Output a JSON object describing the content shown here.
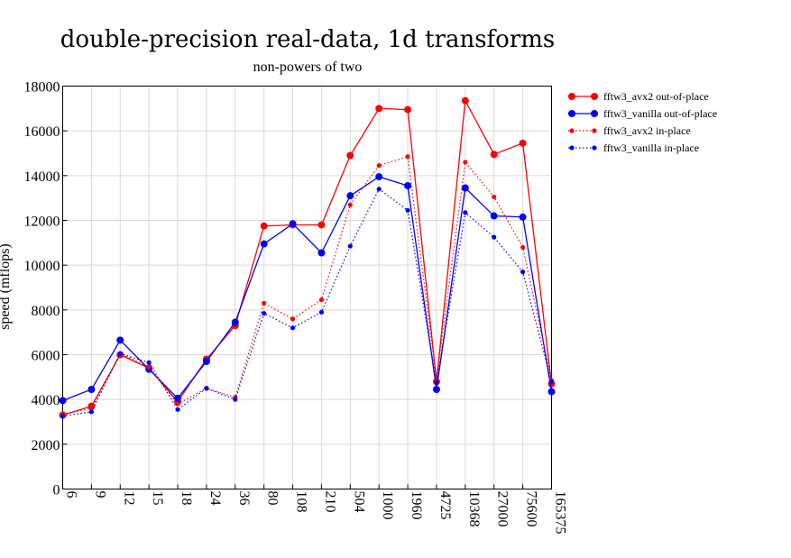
{
  "chart_data": {
    "type": "line",
    "title": "double-precision real-data, 1d transforms",
    "subtitle": "non-powers of two",
    "ylabel": "speed (mflops)",
    "ylim": [
      0,
      18000
    ],
    "yticks": [
      0,
      2000,
      4000,
      6000,
      8000,
      10000,
      12000,
      14000,
      16000,
      18000
    ],
    "grid": true,
    "legend_position": "right",
    "categories": [
      "6",
      "9",
      "12",
      "15",
      "18",
      "24",
      "36",
      "80",
      "108",
      "210",
      "504",
      "1000",
      "1960",
      "4725",
      "10368",
      "27000",
      "75600",
      "165375"
    ],
    "series": [
      {
        "name": "fftw3_avx2 out-of-place",
        "color": "#ff0000",
        "dash": "solid",
        "marker": "large",
        "values": [
          3300,
          3700,
          6000,
          5400,
          3900,
          5800,
          7300,
          11750,
          11800,
          11800,
          14900,
          17000,
          16950,
          4800,
          17350,
          14950,
          15450,
          4700
        ]
      },
      {
        "name": "fftw3_vanilla out-of-place",
        "color": "#0000ff",
        "dash": "solid",
        "marker": "large",
        "values": [
          3950,
          4450,
          6650,
          5350,
          4050,
          5700,
          7450,
          10950,
          11850,
          10550,
          13100,
          13950,
          13550,
          4450,
          13450,
          12200,
          12150,
          4350
        ]
      },
      {
        "name": "fftw3_avx2 in-place",
        "color": "#ff0000",
        "dash": "dotted",
        "marker": "small",
        "values": [
          3350,
          3600,
          6050,
          5450,
          3800,
          4500,
          4100,
          8300,
          7600,
          8450,
          12700,
          14450,
          14850,
          4900,
          14600,
          13050,
          10800,
          4850
        ]
      },
      {
        "name": "fftw3_vanilla in-place",
        "color": "#0000ff",
        "dash": "dotted",
        "marker": "small",
        "values": [
          3250,
          3450,
          6050,
          5650,
          3550,
          4500,
          4000,
          7850,
          7200,
          7900,
          10850,
          13400,
          12450,
          4750,
          12350,
          11250,
          9700,
          4800
        ]
      }
    ]
  }
}
